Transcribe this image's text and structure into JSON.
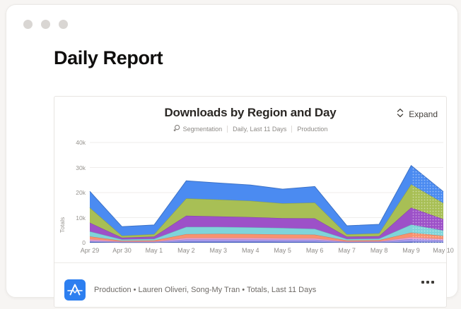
{
  "page": {
    "title": "Daily Report"
  },
  "card": {
    "title": "Downloads by Region and Day",
    "meta": {
      "segmentation_label": "Segmentation",
      "range_label": "Daily, Last 11 Days",
      "env_label": "Production"
    },
    "expand_label": "Expand",
    "footer": {
      "summary": "Production • Lauren Oliveri, Song-My Tran • Totals, Last 11 Days"
    }
  },
  "icons": {
    "app_icon": "amplitude-logo",
    "expand_icon": "chevron-up-down",
    "segmentation_icon": "segmentation-circle",
    "more_icon": "ellipsis",
    "window_dots": "traffic-light-dots"
  },
  "colors": {
    "app_icon_bg": "#2d7ff0",
    "grid_line": "#efedeb",
    "baseline": "#e2dfdc"
  },
  "chart_data": {
    "type": "area",
    "stacked": true,
    "title": "Downloads by Region and Day",
    "xlabel": "",
    "ylabel": "Totals",
    "ylim": [
      0,
      40000
    ],
    "yticks": [
      "40k",
      "30k",
      "20k",
      "10k",
      "0"
    ],
    "grid": "horizontal",
    "legend": "none",
    "last_segment_style": "dotted-incomplete",
    "categories": [
      "Apr 29",
      "Apr 30",
      "May 1",
      "May 2",
      "May 3",
      "May 4",
      "May 5",
      "May 6",
      "May 7",
      "May 8",
      "May 9",
      "May 10"
    ],
    "series": [
      {
        "name": "dark-blue",
        "color": "#4565c8",
        "values": [
          300,
          100,
          120,
          400,
          400,
          400,
          380,
          380,
          120,
          150,
          400,
          300
        ]
      },
      {
        "name": "lavender",
        "color": "#a79bec",
        "values": [
          500,
          200,
          200,
          900,
          900,
          880,
          820,
          800,
          200,
          250,
          1100,
          700
        ]
      },
      {
        "name": "pink",
        "color": "#f2a3cd",
        "values": [
          600,
          200,
          220,
          600,
          620,
          600,
          580,
          580,
          200,
          200,
          700,
          500
        ]
      },
      {
        "name": "orange",
        "color": "#f9926e",
        "values": [
          1100,
          300,
          380,
          1500,
          1600,
          1550,
          1500,
          1450,
          380,
          400,
          1800,
          1200
        ]
      },
      {
        "name": "teal",
        "color": "#7fd4da",
        "values": [
          2000,
          500,
          600,
          2900,
          2800,
          2700,
          2600,
          2300,
          600,
          620,
          3200,
          2200
        ]
      },
      {
        "name": "purple",
        "color": "#9d51c8",
        "values": [
          3500,
          700,
          900,
          4500,
          4200,
          4100,
          3900,
          4200,
          900,
          1000,
          6800,
          4500
        ]
      },
      {
        "name": "green",
        "color": "#a8bf55",
        "values": [
          6000,
          800,
          950,
          6900,
          6700,
          6500,
          5900,
          6300,
          950,
          1100,
          9300,
          6400
        ]
      },
      {
        "name": "blue",
        "color": "#4b8bf1",
        "values": [
          6500,
          3600,
          3700,
          7000,
          6600,
          6300,
          5700,
          6400,
          3400,
          3600,
          7500,
          4600
        ]
      }
    ]
  }
}
